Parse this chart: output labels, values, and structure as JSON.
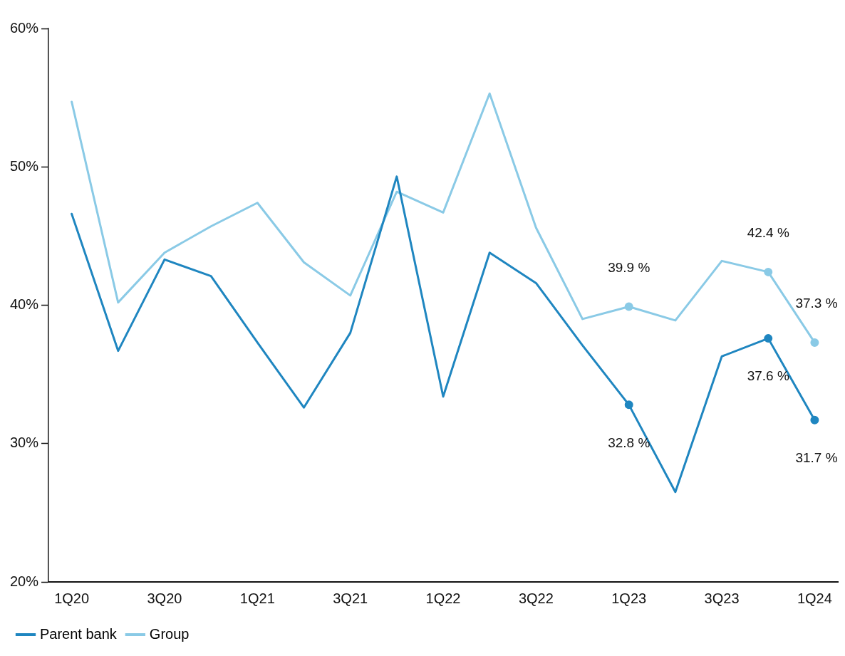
{
  "chart_data": {
    "type": "line",
    "categories": [
      "1Q20",
      null,
      "3Q20",
      null,
      "1Q21",
      null,
      "3Q21",
      null,
      "1Q22",
      null,
      "3Q22",
      null,
      "1Q23",
      null,
      "3Q23",
      null,
      "1Q24"
    ],
    "series": [
      {
        "name": "Parent bank",
        "color": "#1f86c0",
        "values": [
          46.6,
          36.7,
          43.3,
          42.1,
          37.3,
          32.6,
          38.0,
          49.3,
          33.4,
          43.8,
          41.6,
          37.1,
          32.8,
          26.5,
          36.3,
          37.6,
          31.7
        ],
        "value_labels": [
          null,
          null,
          null,
          null,
          null,
          null,
          null,
          null,
          null,
          null,
          null,
          null,
          "32.8 %",
          null,
          null,
          "37.6 %",
          "31.7 %"
        ]
      },
      {
        "name": "Group",
        "color": "#8acae6",
        "values": [
          54.7,
          40.2,
          43.8,
          45.7,
          47.4,
          43.1,
          40.7,
          48.2,
          46.7,
          55.3,
          45.6,
          39.0,
          39.9,
          38.9,
          43.2,
          42.4,
          37.3
        ],
        "value_labels": [
          null,
          null,
          null,
          null,
          null,
          null,
          null,
          null,
          null,
          null,
          null,
          null,
          "39.9 %",
          null,
          null,
          "42.4 %",
          "37.3 %"
        ]
      }
    ],
    "ylim": [
      20,
      60
    ],
    "yticks": [
      {
        "value": 20,
        "label": "20%"
      },
      {
        "value": 30,
        "label": "30%"
      },
      {
        "value": 40,
        "label": "40%"
      },
      {
        "value": 50,
        "label": "50%"
      },
      {
        "value": 60,
        "label": "60%"
      }
    ],
    "grid": false,
    "legend": "bottom left",
    "line_style": "solid"
  }
}
